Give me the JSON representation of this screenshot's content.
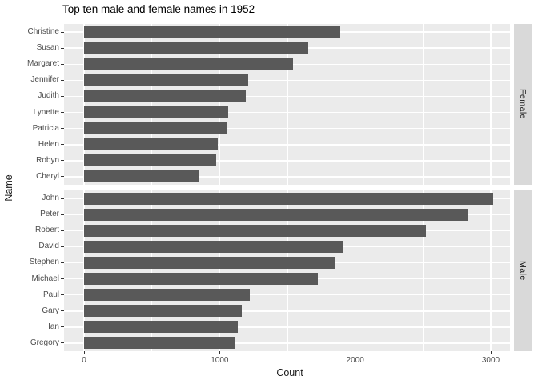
{
  "chart_data": {
    "type": "bar",
    "orientation": "horizontal",
    "title": "Top ten male and female names in 1952",
    "xlabel": "Count",
    "ylabel": "Name",
    "x_tick_labels": [
      "0",
      "1000",
      "2000",
      "3000"
    ],
    "x_tick_values": [
      0,
      1000,
      2000,
      3000
    ],
    "x_minor_values": [
      500,
      1500,
      2500
    ],
    "xlim": [
      -148,
      3143
    ],
    "grid": true,
    "legend": "none",
    "facet_side": "right",
    "facets": [
      {
        "label": "Female",
        "categories": [
          "Christine",
          "Susan",
          "Margaret",
          "Jennifer",
          "Judith",
          "Lynette",
          "Patricia",
          "Helen",
          "Robyn",
          "Cheryl"
        ],
        "values": [
          1890,
          1655,
          1540,
          1210,
          1190,
          1065,
          1055,
          985,
          975,
          850
        ]
      },
      {
        "label": "Male",
        "categories": [
          "John",
          "Peter",
          "Robert",
          "David",
          "Stephen",
          "Michael",
          "Paul",
          "Gary",
          "Ian",
          "Gregory"
        ],
        "values": [
          3020,
          2830,
          2520,
          1915,
          1855,
          1725,
          1225,
          1165,
          1135,
          1110
        ]
      }
    ],
    "colors": {
      "bar": "#595959",
      "panel_bg": "#ebebeb",
      "strip_bg": "#d9d9d9",
      "grid": "#ffffff",
      "axis_text": "#4d4d4d",
      "tick_mark": "#333333",
      "title_text": "#000000",
      "label_text": "#1a1a1a"
    }
  }
}
